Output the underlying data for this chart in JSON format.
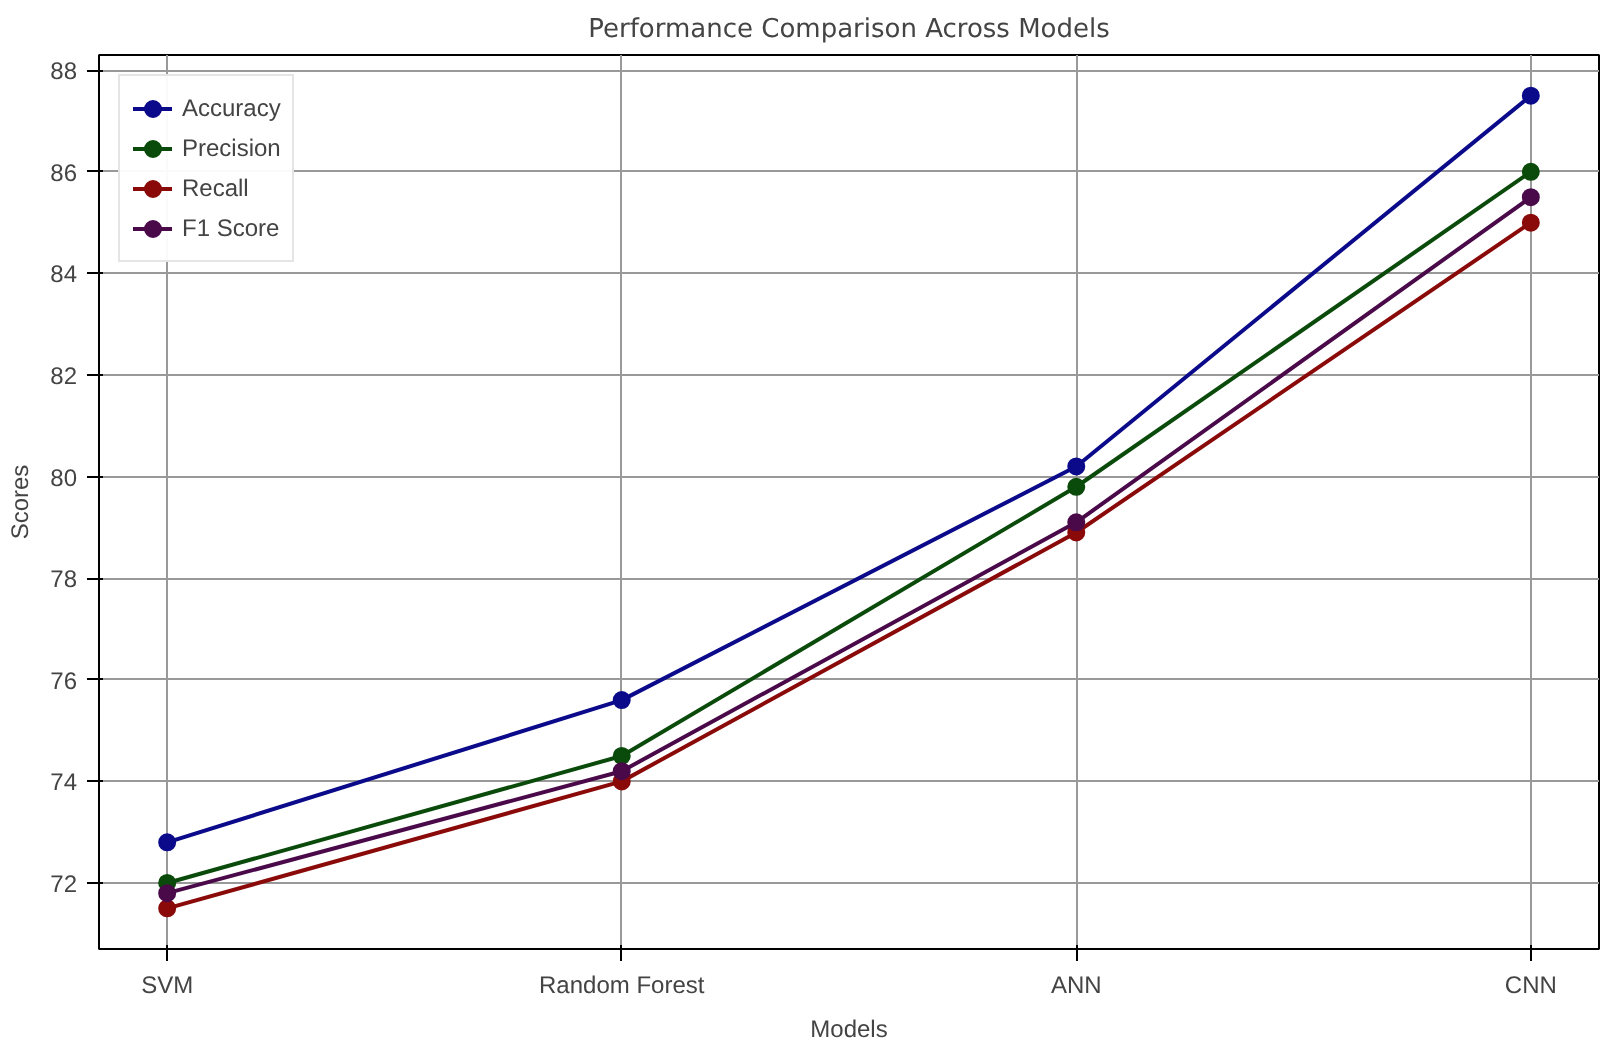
{
  "chart_data": {
    "type": "line",
    "title": "Performance Comparison Across Models",
    "xlabel": "Models",
    "ylabel": "Scores",
    "categories": [
      "SVM",
      "Random Forest",
      "ANN",
      "CNN"
    ],
    "series": [
      {
        "name": "Accuracy",
        "color": "#0a0a8a",
        "values": [
          72.8,
          75.6,
          80.2,
          87.5
        ]
      },
      {
        "name": "Precision",
        "color": "#0a4a0a",
        "values": [
          72.0,
          74.5,
          79.8,
          86.0
        ]
      },
      {
        "name": "Recall",
        "color": "#8a0a0a",
        "values": [
          71.5,
          74.0,
          78.9,
          85.0
        ]
      },
      {
        "name": "F1 Score",
        "color": "#4a0a4a",
        "values": [
          71.8,
          74.2,
          79.1,
          85.5
        ]
      }
    ],
    "ylim": [
      70.7,
      88.3
    ],
    "yticks": [
      72,
      74,
      76,
      78,
      80,
      82,
      84,
      86,
      88
    ],
    "grid": true,
    "legend": "top left",
    "marker": "circle",
    "line_style": "solid"
  }
}
